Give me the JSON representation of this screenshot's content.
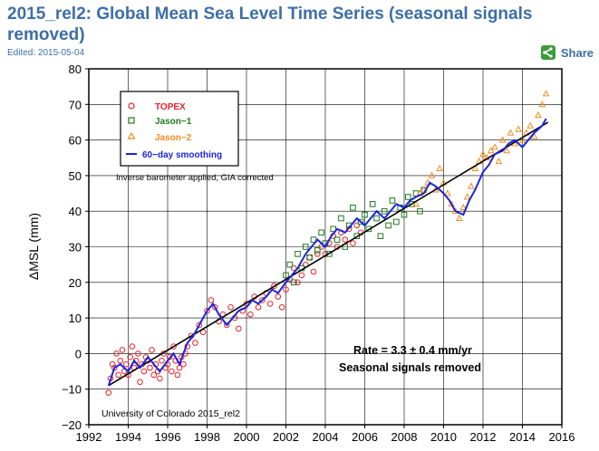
{
  "header": {
    "title": "2015_rel2: Global Mean Sea Level Time Series (seasonal signals removed)",
    "edited": "Edited: 2015-05-04",
    "share_label": "Share",
    "share_icon": "share-icon"
  },
  "chart_data": {
    "type": "scatter",
    "title": "",
    "xlabel": "",
    "ylabel": "ΔMSL (mm)",
    "xlim": [
      1992,
      2016
    ],
    "ylim": [
      -20,
      80
    ],
    "x_ticks": [
      "1992",
      "1994",
      "1996",
      "1998",
      "2000",
      "2002",
      "2004",
      "2006",
      "2008",
      "2010",
      "2012",
      "2014",
      "2016"
    ],
    "y_ticks": [
      "−20",
      "−10",
      "0",
      "10",
      "20",
      "30",
      "40",
      "50",
      "60",
      "70",
      "80"
    ],
    "grid": true,
    "legend_position": "top-left",
    "legend": [
      {
        "name": "TOPEX",
        "marker": "circle",
        "color": "#e8242a"
      },
      {
        "name": "Jason−1",
        "marker": "square",
        "color": "#1e7a1e"
      },
      {
        "name": "Jason−2",
        "marker": "triangle",
        "color": "#f28c1e"
      },
      {
        "name": "60−day smoothing",
        "marker": "line",
        "color": "#1a24e0"
      }
    ],
    "annotations": {
      "corrections": "Inverse barometer applied, GIA corrected",
      "rate_prefix": "Rate = 3.3 ",
      "rate_pm": "±",
      "rate_suffix": " 0.4 mm/yr",
      "seasonal": "Seasonal signals removed",
      "credit": "University of Colorado 2015_rel2"
    },
    "trend": {
      "rate_mm_per_yr": 3.3,
      "x": [
        1993.0,
        2015.3
      ],
      "y": [
        -9,
        65
      ]
    },
    "smoothing_60day": {
      "name": "60−day smoothing",
      "x": [
        1993.0,
        1993.3,
        1993.6,
        1994.0,
        1994.3,
        1994.6,
        1995.0,
        1995.3,
        1995.6,
        1996.0,
        1996.3,
        1996.6,
        1997.0,
        1997.3,
        1997.6,
        1998.0,
        1998.3,
        1998.6,
        1999.0,
        1999.3,
        1999.6,
        2000.0,
        2000.3,
        2000.6,
        2001.0,
        2001.3,
        2001.6,
        2002.0,
        2002.3,
        2002.6,
        2003.0,
        2003.3,
        2003.6,
        2004.0,
        2004.3,
        2004.6,
        2005.0,
        2005.3,
        2005.6,
        2006.0,
        2006.3,
        2006.6,
        2007.0,
        2007.3,
        2007.6,
        2008.0,
        2008.3,
        2008.6,
        2009.0,
        2009.3,
        2009.6,
        2010.0,
        2010.3,
        2010.6,
        2011.0,
        2011.3,
        2011.6,
        2012.0,
        2012.3,
        2012.6,
        2013.0,
        2013.3,
        2013.6,
        2014.0,
        2014.3,
        2014.6,
        2015.0,
        2015.2
      ],
      "y": [
        -9,
        -4,
        -3,
        -5,
        -2,
        -4,
        -1,
        -3,
        -5,
        -2,
        0,
        -3,
        3,
        5,
        8,
        12,
        14,
        11,
        8,
        10,
        12,
        13,
        15,
        14,
        16,
        18,
        17,
        20,
        22,
        24,
        28,
        30,
        32,
        30,
        33,
        35,
        34,
        36,
        38,
        36,
        38,
        40,
        38,
        40,
        42,
        41,
        43,
        44,
        45,
        48,
        47,
        45,
        43,
        40,
        39,
        43,
        46,
        51,
        53,
        56,
        57,
        59,
        60,
        58,
        60,
        62,
        64,
        66
      ]
    },
    "series": [
      {
        "name": "TOPEX",
        "x": [
          1993.0,
          1993.1,
          1993.2,
          1993.3,
          1993.4,
          1993.5,
          1993.6,
          1993.7,
          1993.8,
          1993.9,
          1994.0,
          1994.1,
          1994.2,
          1994.3,
          1994.4,
          1994.5,
          1994.6,
          1994.7,
          1994.8,
          1994.9,
          1995.0,
          1995.1,
          1995.2,
          1995.3,
          1995.4,
          1995.5,
          1995.6,
          1995.7,
          1995.8,
          1995.9,
          1996.0,
          1996.1,
          1996.2,
          1996.3,
          1996.4,
          1996.5,
          1996.6,
          1996.7,
          1996.8,
          1996.9,
          1997.0,
          1997.2,
          1997.4,
          1997.6,
          1997.8,
          1998.0,
          1998.2,
          1998.4,
          1998.6,
          1998.8,
          1999.0,
          1999.2,
          1999.4,
          1999.6,
          1999.8,
          2000.0,
          2000.2,
          2000.4,
          2000.6,
          2000.8,
          2001.0,
          2001.2,
          2001.4,
          2001.6,
          2001.8,
          2002.0,
          2002.2,
          2002.4,
          2002.6,
          2002.8,
          2003.0,
          2003.2,
          2003.4,
          2003.6,
          2003.8,
          2004.0,
          2004.2,
          2004.4,
          2004.6,
          2004.8,
          2005.0,
          2005.2,
          2005.4,
          2005.6,
          2005.8
        ],
        "y": [
          -11,
          -7,
          -3,
          -4,
          0,
          -6,
          -2,
          1,
          -5,
          -3,
          -6,
          -1,
          2,
          -4,
          -2,
          0,
          -8,
          -3,
          -5,
          -1,
          -2,
          -4,
          1,
          -6,
          -3,
          -5,
          -7,
          -2,
          0,
          -4,
          -3,
          -1,
          -5,
          2,
          -2,
          -6,
          -4,
          -1,
          -3,
          0,
          2,
          5,
          3,
          8,
          6,
          12,
          15,
          13,
          9,
          11,
          8,
          13,
          10,
          7,
          12,
          14,
          11,
          16,
          13,
          15,
          17,
          14,
          19,
          16,
          13,
          18,
          21,
          24,
          20,
          22,
          25,
          27,
          23,
          28,
          30,
          28,
          31,
          33,
          30,
          34,
          32,
          35,
          31,
          36,
          34
        ]
      },
      {
        "name": "Jason−1",
        "x": [
          2002.0,
          2002.2,
          2002.4,
          2002.6,
          2002.8,
          2003.0,
          2003.2,
          2003.4,
          2003.6,
          2003.8,
          2004.0,
          2004.2,
          2004.4,
          2004.6,
          2004.8,
          2005.0,
          2005.2,
          2005.4,
          2005.6,
          2005.8,
          2006.0,
          2006.2,
          2006.4,
          2006.6,
          2006.8,
          2007.0,
          2007.2,
          2007.4,
          2007.6,
          2007.8,
          2008.0,
          2008.2,
          2008.4,
          2008.6,
          2008.8,
          2009.0
        ],
        "y": [
          22,
          25,
          20,
          28,
          24,
          30,
          27,
          32,
          29,
          34,
          31,
          28,
          35,
          32,
          38,
          30,
          36,
          41,
          33,
          37,
          39,
          35,
          42,
          38,
          33,
          40,
          36,
          43,
          37,
          41,
          39,
          44,
          42,
          45,
          40,
          46
        ]
      },
      {
        "name": "Jason−2",
        "x": [
          2008.6,
          2008.8,
          2009.0,
          2009.2,
          2009.4,
          2009.6,
          2009.8,
          2010.0,
          2010.2,
          2010.4,
          2010.6,
          2010.8,
          2011.0,
          2011.2,
          2011.4,
          2011.6,
          2011.8,
          2012.0,
          2012.2,
          2012.4,
          2012.6,
          2012.8,
          2013.0,
          2013.2,
          2013.4,
          2013.6,
          2013.8,
          2014.0,
          2014.2,
          2014.4,
          2014.6,
          2014.8,
          2015.0,
          2015.2
        ],
        "y": [
          42,
          45,
          46,
          48,
          50,
          46,
          52,
          48,
          45,
          42,
          40,
          38,
          41,
          44,
          47,
          52,
          54,
          56,
          55,
          57,
          58,
          54,
          60,
          57,
          62,
          59,
          63,
          60,
          62,
          64,
          61,
          67,
          70,
          73
        ]
      }
    ]
  }
}
